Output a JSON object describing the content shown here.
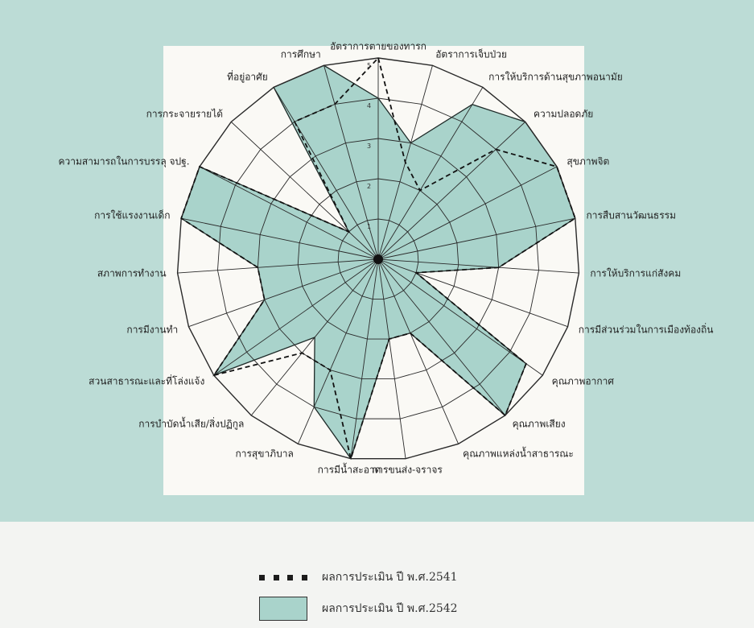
{
  "chart_data": {
    "type": "radar",
    "axes": [
      "อัตราการตายของทารก",
      "อัตราการเจ็บป่วย",
      "การให้บริการด้านสุขภาพอนามัย",
      "ความปลอดภัย",
      "สุขภาพจิต",
      "การสืบสานวัฒนธรรม",
      "การให้บริการแก่สังคม",
      "การมีส่วนร่วมในการเมืองท้องถิ่น",
      "คุณภาพอากาศ",
      "คุณภาพเสียง",
      "คุณภาพแหล่งน้ำสาธารณะ",
      "การขนส่ง-จราจร",
      "การมีน้ำสะอาด",
      "การสุขาภิบาล",
      "การบำบัดน้ำเสีย/สิ่งปฏิกูล",
      "สวนสาธารณะและที่โล่งแจ้ง",
      "การมีงานทำ",
      "สภาพการทำงาน",
      "การใช้แรงงานเด็ก",
      "ความสามารถในการบรรลุ จปฐ.",
      "การกระจายรายได้",
      "ที่อยู่อาศัย",
      "การศึกษา"
    ],
    "scale_ticks": [
      "1",
      "2",
      "3",
      "4",
      "5"
    ],
    "rmax": 5,
    "series": [
      {
        "name": "ผลการประเมิน ปี พ.ศ.2541",
        "style": "dashed",
        "values": [
          5,
          2.5,
          2,
          4,
          5,
          5,
          3,
          1,
          4.5,
          5,
          2,
          2,
          5,
          3,
          3,
          5,
          3,
          3,
          5,
          5,
          1,
          4,
          4
        ]
      },
      {
        "name": "ผลการประเมิน ปี พ.ศ.2542",
        "style": "filled",
        "values": [
          4,
          3,
          4.5,
          5,
          5,
          5,
          3,
          1,
          4.5,
          5,
          2,
          2,
          5,
          4,
          2.5,
          5,
          3,
          3,
          5,
          5,
          1,
          5,
          5
        ]
      }
    ],
    "legend": [
      {
        "label": "ผลการประเมิน ปี พ.ศ.2541",
        "style": "dashed"
      },
      {
        "label": "ผลการประเมิน ปี พ.ศ.2542",
        "style": "filled"
      }
    ],
    "colors": {
      "fill": "#a9d3cb",
      "line": "#1e2a28",
      "background": "#bcdcd6"
    }
  }
}
